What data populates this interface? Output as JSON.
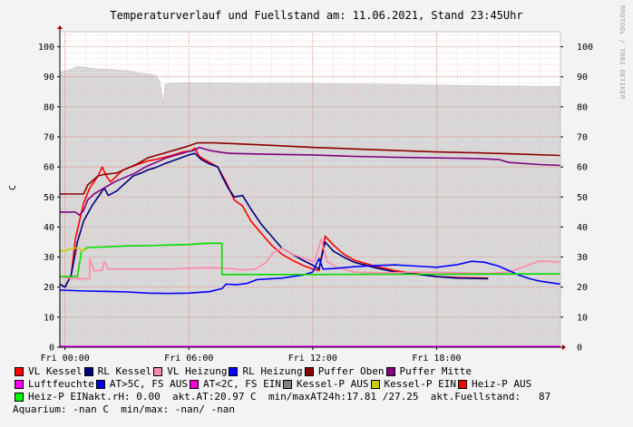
{
  "chart_data": {
    "type": "line",
    "title": "Temperaturverlauf und Fuellstand am: 11.06.2021, Stand 23:45Uhr",
    "ylabel": "C",
    "ylim": [
      0,
      105
    ],
    "xlim": [
      -0.25,
      24
    ],
    "xticks": [
      {
        "hour": 0,
        "label": "Fri 00:00"
      },
      {
        "hour": 6,
        "label": "Fri 06:00"
      },
      {
        "hour": 12,
        "label": "Fri 12:00"
      },
      {
        "hour": 18,
        "label": "Fri 18:00"
      }
    ],
    "yticks": [
      0,
      10,
      20,
      30,
      40,
      50,
      60,
      70,
      80,
      90,
      100
    ],
    "grid": true,
    "watermark": "RRDTOOL / TOBI OETIKER",
    "area": {
      "name": "Fuellstand",
      "color": "#d8d8d8",
      "points": [
        [
          -0.25,
          91.5
        ],
        [
          0.3,
          92.5
        ],
        [
          0.6,
          93.5
        ],
        [
          1.1,
          93
        ],
        [
          1.6,
          92.6
        ],
        [
          2.2,
          92.5
        ],
        [
          2.6,
          92.2
        ],
        [
          3.0,
          92.0
        ],
        [
          3.5,
          91.4
        ],
        [
          4.0,
          91.0
        ],
        [
          4.4,
          90.5
        ],
        [
          4.6,
          88.5
        ],
        [
          4.75,
          81.0
        ],
        [
          4.85,
          87.5
        ],
        [
          5.3,
          88.0
        ],
        [
          6.5,
          88.0
        ],
        [
          8.5,
          87.8
        ],
        [
          11.0,
          87.8
        ],
        [
          14.5,
          87.6
        ],
        [
          17.5,
          87.3
        ],
        [
          20.5,
          87.0
        ],
        [
          22.5,
          86.9
        ],
        [
          24.0,
          86.8
        ]
      ]
    },
    "series": [
      {
        "name": "VL Kessel",
        "color": "#ff0000",
        "points": [
          [
            -0.25,
            21
          ],
          [
            0,
            20
          ],
          [
            0.3,
            24
          ],
          [
            0.5,
            36
          ],
          [
            0.9,
            48
          ],
          [
            1.2,
            53
          ],
          [
            1.6,
            57
          ],
          [
            1.8,
            60
          ],
          [
            2.0,
            57
          ],
          [
            2.2,
            55
          ],
          [
            2.5,
            57
          ],
          [
            2.8,
            59
          ],
          [
            3.2,
            60
          ],
          [
            3.6,
            61
          ],
          [
            4.0,
            62
          ],
          [
            4.4,
            62.5
          ],
          [
            5.0,
            63.5
          ],
          [
            5.4,
            64.3
          ],
          [
            5.7,
            65
          ],
          [
            6.1,
            65.3
          ],
          [
            6.3,
            66.3
          ],
          [
            6.5,
            63.5
          ],
          [
            7.0,
            61.5
          ],
          [
            7.4,
            60
          ],
          [
            7.8,
            55
          ],
          [
            8.2,
            49
          ],
          [
            8.6,
            47
          ],
          [
            9.0,
            42
          ],
          [
            9.5,
            38
          ],
          [
            10,
            34
          ],
          [
            10.5,
            31
          ],
          [
            11,
            29
          ],
          [
            11.5,
            27.3
          ],
          [
            12,
            26
          ],
          [
            12.3,
            25.5
          ],
          [
            12.6,
            37
          ],
          [
            13,
            34
          ],
          [
            13.5,
            31
          ],
          [
            14,
            29
          ],
          [
            15,
            27
          ],
          [
            16,
            25.5
          ],
          [
            17,
            24.5
          ],
          [
            18,
            23.5
          ],
          [
            19,
            23.2
          ],
          [
            20.5,
            23
          ]
        ]
      },
      {
        "name": "RL Kessel",
        "color": "#000080",
        "points": [
          [
            -0.25,
            21
          ],
          [
            0,
            20
          ],
          [
            0.3,
            24
          ],
          [
            0.6,
            35
          ],
          [
            0.9,
            42
          ],
          [
            1.3,
            47
          ],
          [
            1.7,
            51
          ],
          [
            1.9,
            53
          ],
          [
            2.1,
            50.5
          ],
          [
            2.5,
            52
          ],
          [
            2.9,
            54.5
          ],
          [
            3.3,
            57
          ],
          [
            3.7,
            58
          ],
          [
            4.0,
            59
          ],
          [
            4.4,
            59.8
          ],
          [
            4.8,
            61
          ],
          [
            5.2,
            62
          ],
          [
            5.6,
            63
          ],
          [
            6.0,
            64
          ],
          [
            6.3,
            64.5
          ],
          [
            6.6,
            62.5
          ],
          [
            7.0,
            61
          ],
          [
            7.4,
            60
          ],
          [
            7.6,
            57
          ],
          [
            7.9,
            53
          ],
          [
            8.2,
            50
          ],
          [
            8.6,
            50.5
          ],
          [
            9.0,
            46
          ],
          [
            9.5,
            41
          ],
          [
            10,
            37
          ],
          [
            10.5,
            33
          ],
          [
            11,
            31
          ],
          [
            11.5,
            29
          ],
          [
            12,
            27.3
          ],
          [
            12.3,
            26
          ],
          [
            12.6,
            35
          ],
          [
            13,
            32
          ],
          [
            13.5,
            30
          ],
          [
            14,
            28.3
          ],
          [
            15,
            26.5
          ],
          [
            16,
            25
          ],
          [
            17,
            24.3
          ],
          [
            18,
            23.5
          ],
          [
            19,
            23
          ],
          [
            20.5,
            22.8
          ]
        ]
      },
      {
        "name": "VL Heizung",
        "color": "#ff88aa",
        "points": [
          [
            -0.25,
            23.5
          ],
          [
            0.4,
            22.8
          ],
          [
            1.2,
            22.8
          ],
          [
            1.2,
            29.5
          ],
          [
            1.4,
            25.5
          ],
          [
            1.8,
            25.5
          ],
          [
            1.9,
            28.5
          ],
          [
            2.1,
            26
          ],
          [
            5.0,
            26
          ],
          [
            6.0,
            26.3
          ],
          [
            7.0,
            26.5
          ],
          [
            8.0,
            26.2
          ],
          [
            8.6,
            25.7
          ],
          [
            9.2,
            26
          ],
          [
            9.7,
            28
          ],
          [
            10.1,
            31.5
          ],
          [
            10.5,
            33
          ],
          [
            11.0,
            31
          ],
          [
            11.6,
            29.5
          ],
          [
            12.1,
            28.5
          ],
          [
            12.4,
            36
          ],
          [
            12.7,
            28.5
          ],
          [
            13.2,
            26.5
          ],
          [
            14.0,
            25
          ],
          [
            15.5,
            24.7
          ],
          [
            17,
            25
          ],
          [
            19,
            24.8
          ],
          [
            20.5,
            24.5
          ],
          [
            21.5,
            25
          ],
          [
            22.3,
            27
          ],
          [
            23,
            28.7
          ],
          [
            23.6,
            28.5
          ],
          [
            24,
            28.3
          ]
        ]
      },
      {
        "name": "RL Heizung",
        "color": "#0000ff",
        "points": [
          [
            -0.25,
            19
          ],
          [
            1,
            18.7
          ],
          [
            2,
            18.6
          ],
          [
            3,
            18.4
          ],
          [
            4,
            18.0
          ],
          [
            5,
            17.9
          ],
          [
            6,
            18.0
          ],
          [
            7,
            18.5
          ],
          [
            7.6,
            19.5
          ],
          [
            7.8,
            21
          ],
          [
            8.3,
            20.8
          ],
          [
            8.8,
            21.2
          ],
          [
            9.3,
            22.5
          ],
          [
            10,
            22.8
          ],
          [
            10.5,
            23
          ],
          [
            11,
            23.5
          ],
          [
            11.5,
            24
          ],
          [
            12,
            25
          ],
          [
            12.3,
            29.5
          ],
          [
            12.5,
            26
          ],
          [
            13,
            26.2
          ],
          [
            14,
            26.8
          ],
          [
            15,
            27.2
          ],
          [
            16,
            27.4
          ],
          [
            17,
            27
          ],
          [
            18,
            26.6
          ],
          [
            19,
            27.5
          ],
          [
            19.7,
            28.6
          ],
          [
            20.3,
            28.3
          ],
          [
            21,
            27
          ],
          [
            21.5,
            25.5
          ],
          [
            22,
            24
          ],
          [
            22.5,
            22.8
          ],
          [
            23,
            22
          ],
          [
            24,
            21
          ]
        ]
      },
      {
        "name": "Puffer Oben",
        "color": "#8b0000",
        "points": [
          [
            -0.25,
            51
          ],
          [
            0.9,
            51
          ],
          [
            1.1,
            54
          ],
          [
            1.6,
            57
          ],
          [
            1.9,
            57.5
          ],
          [
            2.5,
            58
          ],
          [
            3.0,
            59.5
          ],
          [
            3.5,
            61
          ],
          [
            4.0,
            63
          ],
          [
            4.5,
            64
          ],
          [
            5.0,
            65
          ],
          [
            5.5,
            66
          ],
          [
            6.0,
            67
          ],
          [
            6.4,
            68
          ],
          [
            7.2,
            68
          ],
          [
            8,
            67.8
          ],
          [
            10,
            67.2
          ],
          [
            12,
            66.5
          ],
          [
            14,
            66
          ],
          [
            16,
            65.5
          ],
          [
            18,
            65
          ],
          [
            20,
            64.7
          ],
          [
            22,
            64.3
          ],
          [
            24,
            63.8
          ]
        ]
      },
      {
        "name": "Puffer Mitte",
        "color": "#800080",
        "points": [
          [
            -0.25,
            45
          ],
          [
            0.5,
            45
          ],
          [
            0.7,
            44
          ],
          [
            0.9,
            45.5
          ],
          [
            1.1,
            49
          ],
          [
            1.4,
            51
          ],
          [
            1.9,
            53
          ],
          [
            2.4,
            55
          ],
          [
            2.9,
            56.5
          ],
          [
            3.4,
            58
          ],
          [
            3.9,
            60
          ],
          [
            4.4,
            61.5
          ],
          [
            4.9,
            63
          ],
          [
            5.4,
            64
          ],
          [
            5.9,
            65
          ],
          [
            6.3,
            65.6
          ],
          [
            6.5,
            66.5
          ],
          [
            7.0,
            65.5
          ],
          [
            7.6,
            64.8
          ],
          [
            8,
            64.5
          ],
          [
            10,
            64.2
          ],
          [
            12,
            64
          ],
          [
            14,
            63.5
          ],
          [
            16,
            63.2
          ],
          [
            18,
            63
          ],
          [
            20,
            62.8
          ],
          [
            21,
            62.5
          ],
          [
            21.5,
            61.5
          ],
          [
            23,
            60.8
          ],
          [
            24,
            60.5
          ]
        ]
      },
      {
        "name": "Heiz-P EIN",
        "color": "#00dd00",
        "points": [
          [
            -0.25,
            23.5
          ],
          [
            0.6,
            23.5
          ],
          [
            0.8,
            32
          ],
          [
            1.1,
            33.2
          ],
          [
            2,
            33.4
          ],
          [
            3,
            33.7
          ],
          [
            4,
            33.8
          ],
          [
            5,
            34
          ],
          [
            6,
            34.2
          ],
          [
            6.6,
            34.5
          ],
          [
            7,
            34.6
          ],
          [
            7.6,
            34.6
          ],
          [
            7.6,
            24.2
          ],
          [
            9,
            24.2
          ],
          [
            12,
            24.2
          ],
          [
            15,
            24.3
          ],
          [
            18,
            24.3
          ],
          [
            24,
            24.4
          ]
        ]
      },
      {
        "name": "Kessel-P EIN",
        "color": "#cccc00",
        "points": [
          [
            -0.25,
            32
          ],
          [
            0,
            32.2
          ],
          [
            0.4,
            33
          ],
          [
            0.7,
            33
          ],
          [
            0.8,
            32
          ],
          [
            1.0,
            33
          ]
        ]
      },
      {
        "name": "Luftfeuchte",
        "color": "#ff00ff",
        "points": [
          [
            -0.25,
            0.3
          ],
          [
            24,
            0.3
          ]
        ]
      }
    ]
  },
  "legend": {
    "items": [
      {
        "label": "VL Kessel",
        "color": "#ff0000"
      },
      {
        "label": "RL Kessel",
        "color": "#000080"
      },
      {
        "label": "VL Heizung",
        "color": "#ff88aa"
      },
      {
        "label": "RL Heizung",
        "color": "#0000ff"
      },
      {
        "label": "Puffer Oben",
        "color": "#8b0000"
      },
      {
        "label": "Puffer Mitte",
        "color": "#800080"
      },
      {
        "label": "Luftfeuchte",
        "color": "#ff00ff"
      },
      {
        "label": "AT>5C, FS AUS",
        "color": "#0000ee"
      },
      {
        "label": "AT<2C, FS EIN",
        "color": "#ff00cc"
      },
      {
        "label": "Kessel-P AUS",
        "color": "#808080"
      },
      {
        "label": "Kessel-P EIN",
        "color": "#cccc00"
      },
      {
        "label": "Heiz-P AUS",
        "color": "#ff0000"
      },
      {
        "label": "Heiz-P EIN",
        "color": "#00ff00"
      }
    ],
    "status": {
      "rh": "akt.rH: 0.00",
      "at": "akt.AT:20.97 C",
      "minmax": "min/maxAT24h:17.81 /27.25",
      "fuellstand": "akt.Fuellstand:   87",
      "aquarium": "Aquarium: -nan C  min/max: -nan/ -nan"
    }
  }
}
